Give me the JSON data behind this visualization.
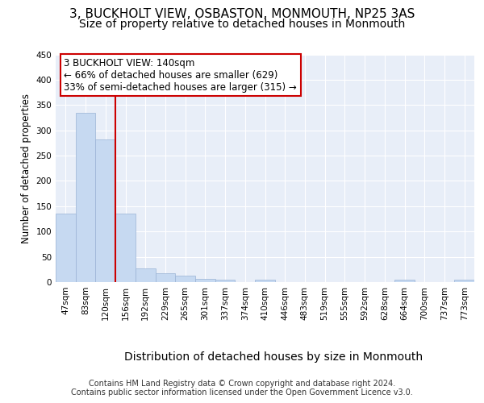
{
  "title1": "3, BUCKHOLT VIEW, OSBASTON, MONMOUTH, NP25 3AS",
  "title2": "Size of property relative to detached houses in Monmouth",
  "xlabel": "Distribution of detached houses by size in Monmouth",
  "ylabel": "Number of detached properties",
  "categories": [
    "47sqm",
    "83sqm",
    "120sqm",
    "156sqm",
    "192sqm",
    "229sqm",
    "265sqm",
    "301sqm",
    "337sqm",
    "374sqm",
    "410sqm",
    "446sqm",
    "483sqm",
    "519sqm",
    "555sqm",
    "592sqm",
    "628sqm",
    "664sqm",
    "700sqm",
    "737sqm",
    "773sqm"
  ],
  "values": [
    135,
    335,
    282,
    135,
    27,
    17,
    13,
    6,
    5,
    0,
    4,
    0,
    0,
    0,
    0,
    0,
    0,
    4,
    0,
    0,
    4
  ],
  "bar_color": "#c6d9f1",
  "bar_edge_color": "#9ab3d5",
  "vline_x": 2.5,
  "vline_color": "#cc0000",
  "annotation_text": "3 BUCKHOLT VIEW: 140sqm\n← 66% of detached houses are smaller (629)\n33% of semi-detached houses are larger (315) →",
  "annotation_box_color": "#ffffff",
  "annotation_box_edge_color": "#cc0000",
  "ylim": [
    0,
    450
  ],
  "yticks": [
    0,
    50,
    100,
    150,
    200,
    250,
    300,
    350,
    400,
    450
  ],
  "footer1": "Contains HM Land Registry data © Crown copyright and database right 2024.",
  "footer2": "Contains public sector information licensed under the Open Government Licence v3.0.",
  "bg_color": "#e8eef8",
  "fig_bg_color": "#ffffff",
  "title1_fontsize": 11,
  "title2_fontsize": 10,
  "xlabel_fontsize": 10,
  "ylabel_fontsize": 8.5,
  "tick_fontsize": 7.5,
  "footer_fontsize": 7,
  "annotation_fontsize": 8.5
}
